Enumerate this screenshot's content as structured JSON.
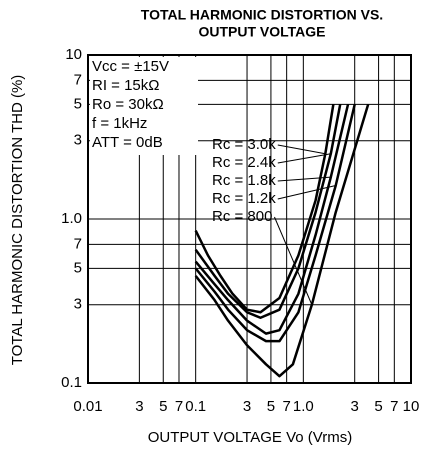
{
  "chart_data": {
    "type": "line",
    "title": [
      "TOTAL HARMONIC DISTORTION VS.",
      "OUTPUT VOLTAGE"
    ],
    "xlabel": "OUTPUT VOLTAGE Vo (Vrms)",
    "ylabel": "TOTAL HARMONIC DISTORTION THD (%)",
    "conditions": [
      "Vcc = ±15V",
      "RI = 15kΩ",
      "Ro = 30kΩ",
      "f = 1kHz",
      "ATT = 0dB"
    ],
    "xlog": true,
    "ylog": true,
    "grid": true,
    "color": "#000000",
    "xlim": [
      0.01,
      10
    ],
    "ylim": [
      0.1,
      10
    ],
    "xticks": [
      {
        "value": 0.01,
        "label": "0.01"
      },
      {
        "value": 0.03,
        "label": "3"
      },
      {
        "value": 0.05,
        "label": "5"
      },
      {
        "value": 0.07,
        "label": "7"
      },
      0.1,
      {
        "value": 0.3,
        "label": "3"
      },
      {
        "value": 0.5,
        "label": "5"
      },
      {
        "value": 0.7,
        "label": "7"
      },
      {
        "value": 1,
        "label": "1.0"
      },
      3,
      5,
      7,
      10
    ],
    "yticks": [
      10,
      7,
      5,
      3,
      {
        "value": 1,
        "label": "1.0"
      },
      {
        "value": 0.7,
        "label": "7"
      },
      {
        "value": 0.5,
        "label": "5"
      },
      {
        "value": 0.3,
        "label": "3"
      },
      0.1
    ],
    "series": [
      {
        "name": "Rc = 3.0k",
        "x": [
          0.1,
          0.13,
          0.17,
          0.22,
          0.3,
          0.4,
          0.6,
          0.9,
          1.3,
          1.6,
          1.9
        ],
        "values": [
          0.85,
          0.6,
          0.45,
          0.35,
          0.28,
          0.27,
          0.33,
          0.6,
          1.3,
          2.5,
          5
        ]
      },
      {
        "name": "Rc = 2.4k",
        "x": [
          0.1,
          0.15,
          0.2,
          0.3,
          0.4,
          0.6,
          0.9,
          1.3,
          1.8,
          2.2
        ],
        "values": [
          0.65,
          0.45,
          0.35,
          0.27,
          0.25,
          0.28,
          0.5,
          1.1,
          2.5,
          5
        ]
      },
      {
        "name": "Rc = 1.8k",
        "x": [
          0.1,
          0.15,
          0.2,
          0.3,
          0.45,
          0.6,
          0.9,
          1.3,
          1.8,
          2.6
        ],
        "values": [
          0.55,
          0.4,
          0.32,
          0.24,
          0.2,
          0.21,
          0.35,
          0.8,
          1.8,
          5
        ]
      },
      {
        "name": "Rc = 1.2k",
        "x": [
          0.1,
          0.15,
          0.2,
          0.3,
          0.45,
          0.6,
          0.9,
          1.3,
          2,
          3
        ],
        "values": [
          0.5,
          0.36,
          0.28,
          0.21,
          0.18,
          0.18,
          0.27,
          0.6,
          1.6,
          5
        ]
      },
      {
        "name": "Rc = 800",
        "x": [
          0.1,
          0.15,
          0.2,
          0.3,
          0.45,
          0.6,
          0.8,
          1.2,
          2,
          4
        ],
        "values": [
          0.45,
          0.32,
          0.24,
          0.17,
          0.13,
          0.11,
          0.13,
          0.3,
          1.1,
          5
        ]
      }
    ]
  }
}
